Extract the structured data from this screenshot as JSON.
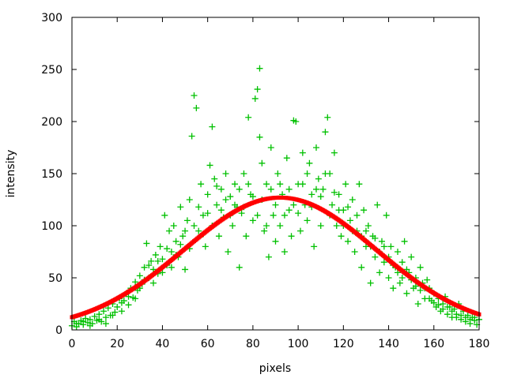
{
  "chart_data": {
    "type": "scatter",
    "xlabel": "pixels",
    "ylabel": "intensity",
    "xlim": [
      0,
      180
    ],
    "ylim": [
      0,
      300
    ],
    "xticks": [
      0,
      20,
      40,
      60,
      80,
      100,
      120,
      140,
      160,
      180
    ],
    "yticks": [
      0,
      50,
      100,
      150,
      200,
      250,
      300
    ],
    "grid": false,
    "colors": {
      "points": "#00c000",
      "fit": "#ff0000",
      "axes": "#000000"
    },
    "fit": {
      "type": "gaussian",
      "amplitude": 127,
      "center": 92,
      "sigma": 42.5
    },
    "points": [
      [
        0,
        4
      ],
      [
        1,
        8
      ],
      [
        2,
        3
      ],
      [
        3,
        6
      ],
      [
        4,
        9
      ],
      [
        5,
        5
      ],
      [
        6,
        11
      ],
      [
        7,
        7
      ],
      [
        8,
        10
      ],
      [
        9,
        6
      ],
      [
        10,
        13
      ],
      [
        11,
        9
      ],
      [
        12,
        15
      ],
      [
        13,
        8
      ],
      [
        14,
        18
      ],
      [
        15,
        12
      ],
      [
        16,
        21
      ],
      [
        17,
        14
      ],
      [
        18,
        25
      ],
      [
        19,
        17
      ],
      [
        20,
        22
      ],
      [
        21,
        30
      ],
      [
        22,
        18
      ],
      [
        23,
        28
      ],
      [
        24,
        35
      ],
      [
        25,
        24
      ],
      [
        26,
        40
      ],
      [
        27,
        31
      ],
      [
        28,
        46
      ],
      [
        29,
        38
      ],
      [
        30,
        52
      ],
      [
        31,
        44
      ],
      [
        32,
        60
      ],
      [
        33,
        83
      ],
      [
        34,
        50
      ],
      [
        35,
        66
      ],
      [
        36,
        58
      ],
      [
        37,
        72
      ],
      [
        38,
        54
      ],
      [
        39,
        80
      ],
      [
        40,
        68
      ],
      [
        41,
        110
      ],
      [
        42,
        62
      ],
      [
        43,
        95
      ],
      [
        44,
        75
      ],
      [
        45,
        100
      ],
      [
        46,
        85
      ],
      [
        47,
        70
      ],
      [
        48,
        118
      ],
      [
        49,
        90
      ],
      [
        50,
        58
      ],
      [
        51,
        105
      ],
      [
        52,
        125
      ],
      [
        53,
        186
      ],
      [
        54,
        225
      ],
      [
        55,
        213
      ],
      [
        56,
        95
      ],
      [
        57,
        140
      ],
      [
        58,
        110
      ],
      [
        59,
        80
      ],
      [
        60,
        130
      ],
      [
        61,
        158
      ],
      [
        62,
        195
      ],
      [
        63,
        145
      ],
      [
        64,
        120
      ],
      [
        65,
        90
      ],
      [
        66,
        135
      ],
      [
        67,
        108
      ],
      [
        68,
        150
      ],
      [
        69,
        75
      ],
      [
        70,
        128
      ],
      [
        71,
        100
      ],
      [
        72,
        140
      ],
      [
        73,
        118
      ],
      [
        74,
        60
      ],
      [
        75,
        112
      ],
      [
        76,
        150
      ],
      [
        77,
        90
      ],
      [
        78,
        204
      ],
      [
        79,
        130
      ],
      [
        80,
        105
      ],
      [
        81,
        222
      ],
      [
        82,
        231
      ],
      [
        83,
        251
      ],
      [
        83,
        185
      ],
      [
        84,
        160
      ],
      [
        85,
        95
      ],
      [
        86,
        140
      ],
      [
        87,
        70
      ],
      [
        88,
        175
      ],
      [
        89,
        110
      ],
      [
        90,
        85
      ],
      [
        91,
        150
      ],
      [
        92,
        100
      ],
      [
        93,
        130
      ],
      [
        94,
        75
      ],
      [
        95,
        165
      ],
      [
        96,
        115
      ],
      [
        97,
        90
      ],
      [
        98,
        201
      ],
      [
        99,
        200
      ],
      [
        100,
        140
      ],
      [
        101,
        95
      ],
      [
        102,
        170
      ],
      [
        103,
        120
      ],
      [
        104,
        105
      ],
      [
        105,
        160
      ],
      [
        106,
        130
      ],
      [
        107,
        80
      ],
      [
        108,
        175
      ],
      [
        109,
        145
      ],
      [
        110,
        100
      ],
      [
        111,
        135
      ],
      [
        112,
        190
      ],
      [
        113,
        204
      ],
      [
        114,
        150
      ],
      [
        115,
        120
      ],
      [
        116,
        170
      ],
      [
        117,
        100
      ],
      [
        118,
        130
      ],
      [
        119,
        90
      ],
      [
        120,
        115
      ],
      [
        121,
        140
      ],
      [
        122,
        85
      ],
      [
        123,
        105
      ],
      [
        124,
        125
      ],
      [
        125,
        75
      ],
      [
        126,
        95
      ],
      [
        127,
        140
      ],
      [
        128,
        60
      ],
      [
        129,
        115
      ],
      [
        130,
        80
      ],
      [
        131,
        100
      ],
      [
        132,
        45
      ],
      [
        133,
        90
      ],
      [
        134,
        70
      ],
      [
        135,
        120
      ],
      [
        136,
        55
      ],
      [
        137,
        85
      ],
      [
        138,
        65
      ],
      [
        139,
        110
      ],
      [
        140,
        50
      ],
      [
        141,
        80
      ],
      [
        142,
        40
      ],
      [
        143,
        60
      ],
      [
        144,
        75
      ],
      [
        145,
        45
      ],
      [
        146,
        65
      ],
      [
        147,
        85
      ],
      [
        148,
        35
      ],
      [
        149,
        55
      ],
      [
        150,
        70
      ],
      [
        151,
        40
      ],
      [
        152,
        50
      ],
      [
        153,
        25
      ],
      [
        154,
        60
      ],
      [
        155,
        45
      ],
      [
        156,
        30
      ],
      [
        157,
        48
      ],
      [
        158,
        40
      ],
      [
        159,
        28
      ],
      [
        160,
        35
      ],
      [
        161,
        22
      ],
      [
        162,
        30
      ],
      [
        163,
        18
      ],
      [
        164,
        25
      ],
      [
        165,
        32
      ],
      [
        166,
        15
      ],
      [
        167,
        22
      ],
      [
        168,
        12
      ],
      [
        169,
        20
      ],
      [
        170,
        15
      ],
      [
        171,
        25
      ],
      [
        172,
        10
      ],
      [
        173,
        18
      ],
      [
        174,
        8
      ],
      [
        175,
        14
      ],
      [
        176,
        6
      ],
      [
        177,
        12
      ],
      [
        178,
        9
      ],
      [
        179,
        5
      ],
      [
        180,
        10
      ],
      [
        2,
        6
      ],
      [
        5,
        8
      ],
      [
        8,
        4
      ],
      [
        12,
        10
      ],
      [
        15,
        6
      ],
      [
        18,
        14
      ],
      [
        22,
        26
      ],
      [
        25,
        32
      ],
      [
        28,
        30
      ],
      [
        30,
        40
      ],
      [
        32,
        48
      ],
      [
        34,
        62
      ],
      [
        36,
        45
      ],
      [
        38,
        66
      ],
      [
        40,
        55
      ],
      [
        42,
        78
      ],
      [
        44,
        60
      ],
      [
        46,
        72
      ],
      [
        48,
        82
      ],
      [
        50,
        95
      ],
      [
        52,
        78
      ],
      [
        54,
        100
      ],
      [
        56,
        118
      ],
      [
        58,
        92
      ],
      [
        60,
        112
      ],
      [
        62,
        100
      ],
      [
        64,
        138
      ],
      [
        66,
        115
      ],
      [
        68,
        125
      ],
      [
        70,
        110
      ],
      [
        72,
        120
      ],
      [
        74,
        135
      ],
      [
        76,
        118
      ],
      [
        78,
        140
      ],
      [
        80,
        128
      ],
      [
        82,
        110
      ],
      [
        84,
        125
      ],
      [
        86,
        100
      ],
      [
        88,
        135
      ],
      [
        90,
        120
      ],
      [
        92,
        140
      ],
      [
        94,
        110
      ],
      [
        96,
        135
      ],
      [
        98,
        120
      ],
      [
        100,
        112
      ],
      [
        102,
        140
      ],
      [
        104,
        150
      ],
      [
        106,
        118
      ],
      [
        108,
        135
      ],
      [
        110,
        128
      ],
      [
        112,
        150
      ],
      [
        114,
        110
      ],
      [
        116,
        132
      ],
      [
        118,
        115
      ],
      [
        120,
        100
      ],
      [
        122,
        118
      ],
      [
        124,
        95
      ],
      [
        126,
        110
      ],
      [
        128,
        90
      ],
      [
        130,
        95
      ],
      [
        132,
        80
      ],
      [
        134,
        88
      ],
      [
        136,
        75
      ],
      [
        138,
        80
      ],
      [
        140,
        70
      ],
      [
        142,
        62
      ],
      [
        144,
        55
      ],
      [
        146,
        50
      ],
      [
        148,
        58
      ],
      [
        150,
        48
      ],
      [
        152,
        42
      ],
      [
        154,
        38
      ],
      [
        156,
        40
      ],
      [
        158,
        30
      ],
      [
        160,
        26
      ],
      [
        162,
        24
      ],
      [
        164,
        20
      ],
      [
        166,
        22
      ],
      [
        168,
        18
      ],
      [
        170,
        12
      ],
      [
        172,
        14
      ],
      [
        174,
        12
      ],
      [
        176,
        10
      ],
      [
        178,
        12
      ]
    ]
  }
}
